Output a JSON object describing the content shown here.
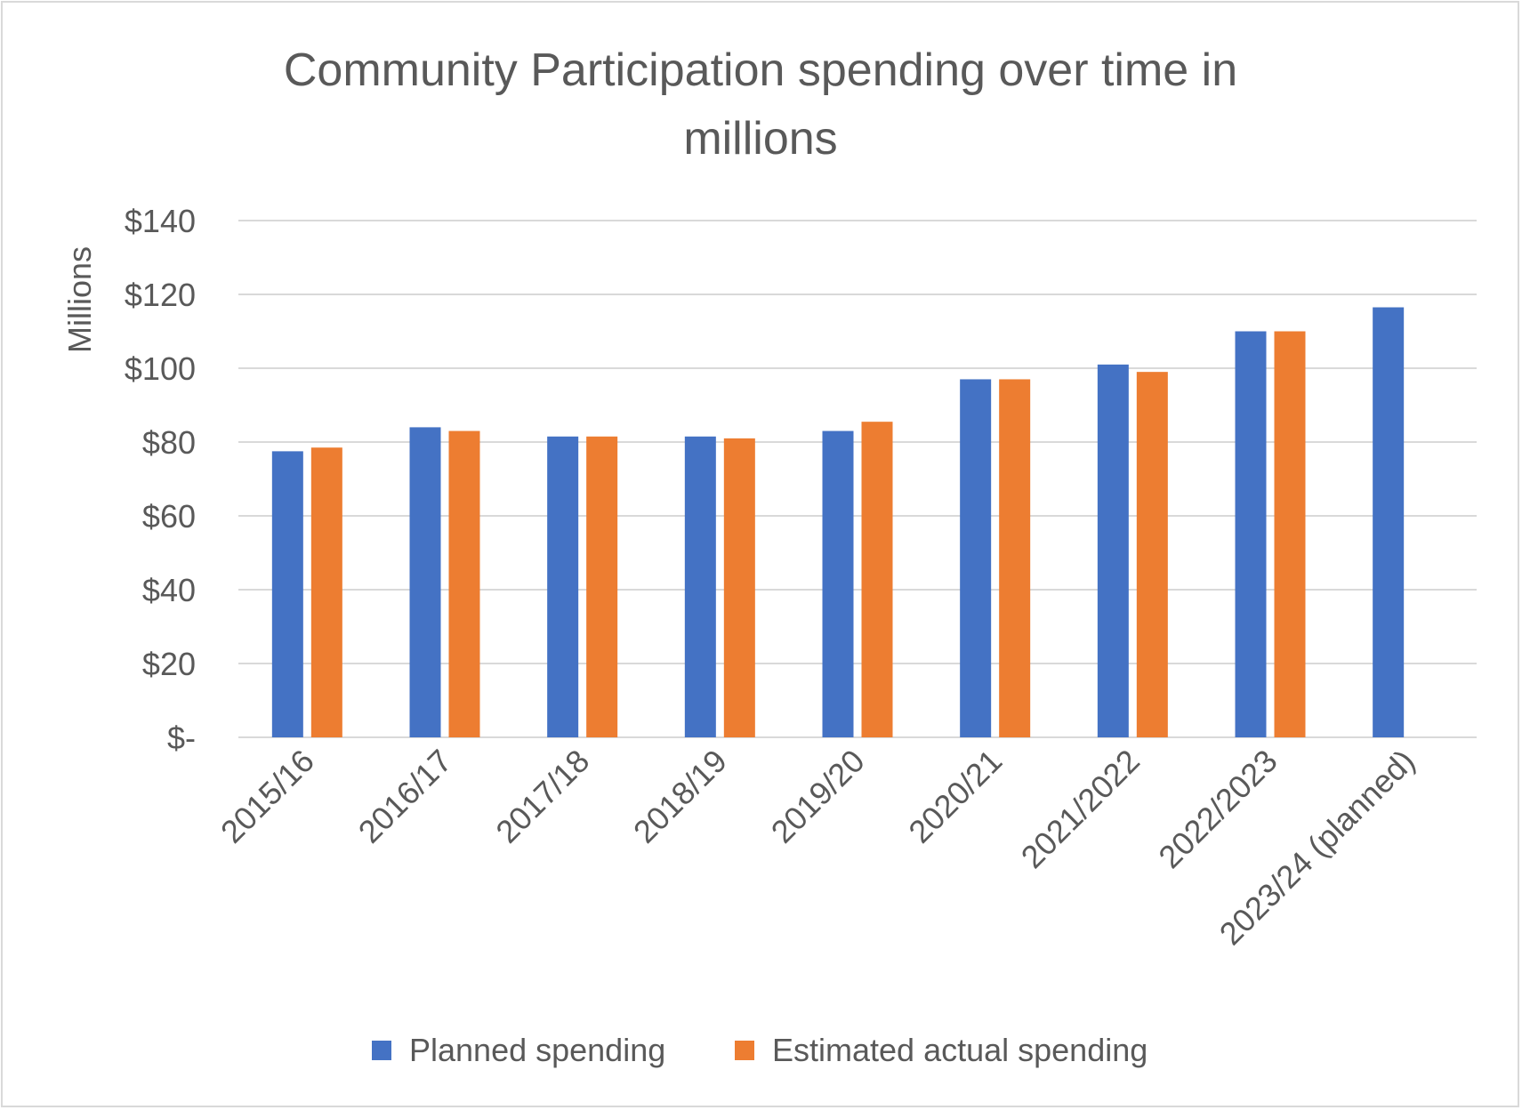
{
  "chart_data": {
    "type": "bar",
    "title_line1": "Community Participation spending over time in",
    "title_line2": "millions",
    "ylabel": "Millions",
    "xlabel": "",
    "ylim": [
      0,
      140
    ],
    "yticks": [
      0,
      20,
      40,
      60,
      80,
      100,
      120,
      140
    ],
    "ytick_labels": [
      "$-",
      "$20",
      "$40",
      "$60",
      "$80",
      "$100",
      "$120",
      "$140"
    ],
    "grid": true,
    "legend_position": "bottom",
    "categories": [
      "2015/16",
      "2016/17",
      "2017/18",
      "2018/19",
      "2019/20",
      "2020/21",
      "2021/2022",
      "2022/2023",
      "2023/24 (planned)"
    ],
    "series": [
      {
        "name": "Planned spending",
        "color": "#4472c4",
        "values": [
          77.5,
          84,
          81.5,
          81.5,
          83,
          97,
          101,
          110,
          116.5
        ]
      },
      {
        "name": "Estimated actual spending",
        "color": "#ed7d31",
        "values": [
          78.5,
          83,
          81.5,
          81,
          85.5,
          97,
          99,
          110,
          null
        ]
      }
    ]
  }
}
